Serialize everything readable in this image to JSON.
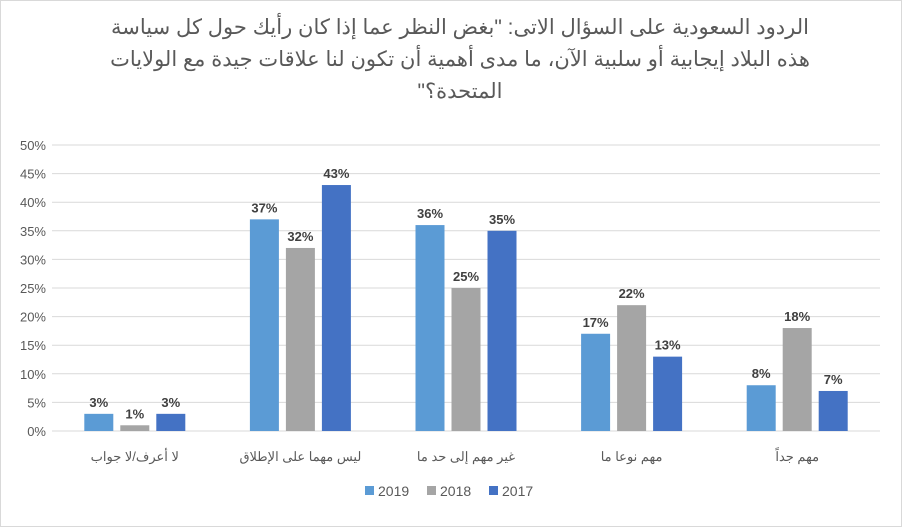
{
  "chart_data": {
    "type": "bar",
    "title": "الردود السعودية على السؤال الاتى: \"بغض النظر عما إذا كان رأيك حول كل سياسة هذه البلاد إيجابية أو سلبية الآن، ما مدى أهمية أن تكون لنا علاقات جيدة مع الولايات المتحدة؟\"",
    "categories": [
      "لا أعرف/لا جواب",
      "ليس مهما على الإطلاق",
      "غير مهم إلى حد ما",
      "مهم نوعا ما",
      "مهم جداً"
    ],
    "series": [
      {
        "name": "2019",
        "color": "#5b9bd5",
        "values": [
          3,
          37,
          36,
          17,
          8
        ]
      },
      {
        "name": "2018",
        "color": "#a5a5a5",
        "values": [
          1,
          32,
          25,
          22,
          18
        ]
      },
      {
        "name": "2017",
        "color": "#4472c4",
        "values": [
          3,
          43,
          35,
          13,
          7
        ]
      }
    ],
    "yticks": [
      "0%",
      "5%",
      "10%",
      "15%",
      "20%",
      "25%",
      "30%",
      "35%",
      "40%",
      "45%",
      "50%"
    ],
    "ylim": [
      0,
      50
    ],
    "value_suffix": "%",
    "grid": true,
    "legend": "bottom",
    "xlabel": "",
    "ylabel": ""
  }
}
